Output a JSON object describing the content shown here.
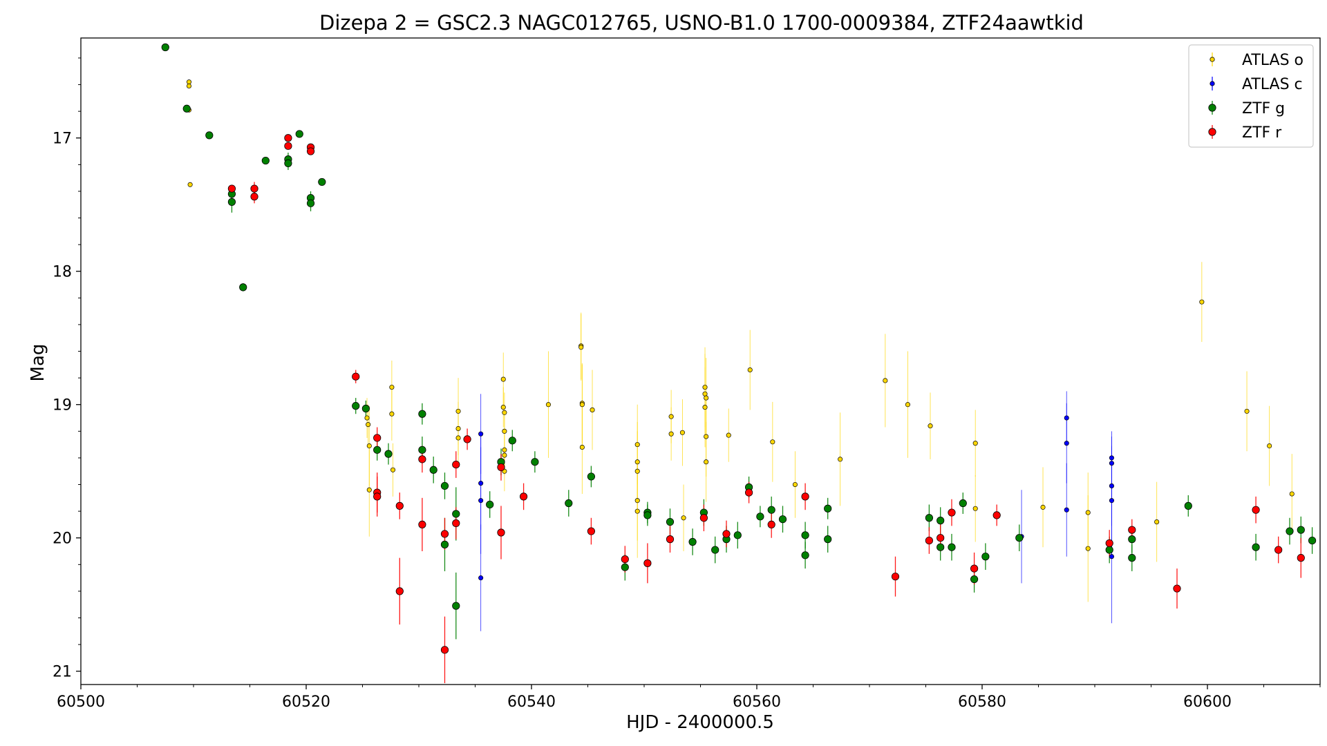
{
  "chart_data": {
    "type": "scatter",
    "title": "Dizepa 2 = GSC2.3 NAGC012765, USNO-B1.0 1700-0009384, ZTF24aawtkid",
    "xlabel": "HJD - 2400000.5",
    "ylabel": "Mag",
    "xlim": [
      60500,
      60610
    ],
    "ylim": [
      21.1,
      16.25
    ],
    "y_inverted": true,
    "grid": false,
    "legend_position": "top-right",
    "xticks": [
      60500,
      60520,
      60540,
      60560,
      60580,
      60600
    ],
    "xtick_labels": [
      "60500",
      "60520",
      "60540",
      "60560",
      "60580",
      "60600"
    ],
    "yticks": [
      17,
      18,
      19,
      20,
      21
    ],
    "ytick_labels": [
      "17",
      "18",
      "19",
      "20",
      "21"
    ],
    "series": [
      {
        "name": "ATLAS o",
        "color": "#ffd700",
        "marker": "small",
        "points": [
          [
            60509.6,
            16.58,
            0
          ],
          [
            60509.6,
            16.61,
            0
          ],
          [
            60509.6,
            16.79,
            0
          ],
          [
            60509.7,
            17.35,
            0
          ],
          [
            60525.4,
            19.1,
            0.15
          ],
          [
            60525.5,
            19.15,
            0.15
          ],
          [
            60525.6,
            19.31,
            0.3
          ],
          [
            60525.6,
            19.64,
            0.35
          ],
          [
            60527.6,
            18.87,
            0.2
          ],
          [
            60527.6,
            19.07,
            0.2
          ],
          [
            60527.7,
            19.49,
            0.2
          ],
          [
            60533.5,
            19.05,
            0.25
          ],
          [
            60533.5,
            19.18,
            0.2
          ],
          [
            60533.5,
            19.25,
            0.2
          ],
          [
            60537.5,
            18.81,
            0.2
          ],
          [
            60537.5,
            19.02,
            0.15
          ],
          [
            60537.6,
            19.06,
            0.15
          ],
          [
            60537.6,
            19.2,
            0.15
          ],
          [
            60537.6,
            19.34,
            0.15
          ],
          [
            60537.6,
            19.38,
            0.15
          ],
          [
            60537.6,
            19.5,
            0.15
          ],
          [
            60541.5,
            19.0,
            0.4
          ],
          [
            60544.4,
            18.56,
            0.25
          ],
          [
            60544.4,
            18.57,
            0.25
          ],
          [
            60544.5,
            18.99,
            0.3
          ],
          [
            60544.5,
            19.0,
            0.3
          ],
          [
            60544.5,
            19.32,
            0.35
          ],
          [
            60545.4,
            19.04,
            0.3
          ],
          [
            60549.4,
            19.3,
            0.3
          ],
          [
            60549.4,
            19.43,
            0.3
          ],
          [
            60549.4,
            19.5,
            0.3
          ],
          [
            60549.4,
            19.72,
            0.3
          ],
          [
            60549.4,
            19.8,
            0.35
          ],
          [
            60552.4,
            19.09,
            0.2
          ],
          [
            60552.4,
            19.22,
            0.2
          ],
          [
            60553.4,
            19.21,
            0.25
          ],
          [
            60553.5,
            19.85,
            0.25
          ],
          [
            60555.4,
            18.87,
            0.3
          ],
          [
            60555.4,
            18.92,
            0.3
          ],
          [
            60555.5,
            18.95,
            0.3
          ],
          [
            60555.4,
            19.02,
            0.3
          ],
          [
            60555.5,
            19.24,
            0.3
          ],
          [
            60555.5,
            19.43,
            0.3
          ],
          [
            60557.5,
            19.23,
            0.2
          ],
          [
            60559.4,
            18.74,
            0.3
          ],
          [
            60561.4,
            19.28,
            0.3
          ],
          [
            60563.4,
            19.6,
            0.25
          ],
          [
            60567.4,
            19.41,
            0.35
          ],
          [
            60571.4,
            18.82,
            0.35
          ],
          [
            60573.4,
            19.0,
            0.4
          ],
          [
            60575.4,
            19.16,
            0.25
          ],
          [
            60579.4,
            19.29,
            0.25
          ],
          [
            60579.4,
            19.78,
            0.25
          ],
          [
            60585.4,
            19.77,
            0.3
          ],
          [
            60589.4,
            19.81,
            0.3
          ],
          [
            60589.4,
            20.08,
            0.4
          ],
          [
            60595.5,
            19.88,
            0.3
          ],
          [
            60599.5,
            18.23,
            0.3
          ],
          [
            60603.5,
            19.05,
            0.3
          ],
          [
            60605.5,
            19.31,
            0.3
          ],
          [
            60607.5,
            19.67,
            0.3
          ]
        ]
      },
      {
        "name": "ATLAS c",
        "color": "#0000ff",
        "marker": "small",
        "points": [
          [
            60535.5,
            19.22,
            0.3
          ],
          [
            60535.5,
            19.59,
            0.35
          ],
          [
            60535.5,
            19.72,
            0.4
          ],
          [
            60535.5,
            20.3,
            0.4
          ],
          [
            60583.5,
            19.99,
            0.35
          ],
          [
            60587.5,
            19.1,
            0.2
          ],
          [
            60587.5,
            19.29,
            0.3
          ],
          [
            60587.5,
            19.79,
            0.35
          ],
          [
            60591.5,
            19.4,
            0.2
          ],
          [
            60591.5,
            19.44,
            0.2
          ],
          [
            60591.5,
            19.61,
            0.3
          ],
          [
            60591.5,
            19.72,
            0.4
          ],
          [
            60591.5,
            20.14,
            0.5
          ]
        ]
      },
      {
        "name": "ZTF g",
        "color": "#008000",
        "marker": "large",
        "points": [
          [
            60507.5,
            16.32,
            0
          ],
          [
            60509.4,
            16.78,
            0
          ],
          [
            60511.4,
            16.98,
            0
          ],
          [
            60513.4,
            17.42,
            0.05
          ],
          [
            60513.4,
            17.48,
            0.08
          ],
          [
            60514.4,
            18.12,
            0.03
          ],
          [
            60516.4,
            17.17,
            0
          ],
          [
            60518.4,
            17.16,
            0.05
          ],
          [
            60518.4,
            17.19,
            0.05
          ],
          [
            60519.4,
            16.97,
            0
          ],
          [
            60520.4,
            17.45,
            0.05
          ],
          [
            60520.4,
            17.49,
            0.06
          ],
          [
            60521.4,
            17.33,
            0
          ],
          [
            60524.4,
            19.01,
            0.06
          ],
          [
            60525.3,
            19.03,
            0.06
          ],
          [
            60526.3,
            19.34,
            0.08
          ],
          [
            60527.3,
            19.37,
            0.08
          ],
          [
            60530.3,
            19.07,
            0.08
          ],
          [
            60530.3,
            19.34,
            0.1
          ],
          [
            60531.3,
            19.49,
            0.1
          ],
          [
            60532.3,
            19.61,
            0.1
          ],
          [
            60532.3,
            20.05,
            0.2
          ],
          [
            60533.3,
            19.82,
            0.2
          ],
          [
            60533.3,
            20.51,
            0.25
          ],
          [
            60536.3,
            19.75,
            0.1
          ],
          [
            60537.3,
            19.43,
            0.1
          ],
          [
            60538.3,
            19.27,
            0.08
          ],
          [
            60540.3,
            19.43,
            0.08
          ],
          [
            60543.3,
            19.74,
            0.1
          ],
          [
            60545.3,
            19.54,
            0.08
          ],
          [
            60548.3,
            20.22,
            0.1
          ],
          [
            60550.3,
            19.81,
            0.08
          ],
          [
            60550.3,
            19.83,
            0.08
          ],
          [
            60552.3,
            19.88,
            0.1
          ],
          [
            60554.3,
            20.03,
            0.1
          ],
          [
            60555.3,
            19.81,
            0.1
          ],
          [
            60556.3,
            20.09,
            0.1
          ],
          [
            60557.3,
            20.01,
            0.1
          ],
          [
            60558.3,
            19.98,
            0.1
          ],
          [
            60559.3,
            19.62,
            0.08
          ],
          [
            60560.3,
            19.84,
            0.08
          ],
          [
            60561.3,
            19.79,
            0.1
          ],
          [
            60562.3,
            19.86,
            0.1
          ],
          [
            60564.3,
            19.98,
            0.1
          ],
          [
            60564.3,
            20.13,
            0.1
          ],
          [
            60566.3,
            20.01,
            0.1
          ],
          [
            60566.3,
            19.78,
            0.08
          ],
          [
            60575.3,
            19.85,
            0.1
          ],
          [
            60576.3,
            19.87,
            0.1
          ],
          [
            60576.3,
            20.07,
            0.1
          ],
          [
            60577.3,
            20.07,
            0.1
          ],
          [
            60578.3,
            19.74,
            0.08
          ],
          [
            60579.3,
            20.31,
            0.1
          ],
          [
            60580.3,
            20.14,
            0.1
          ],
          [
            60583.3,
            20.0,
            0.1
          ],
          [
            60591.3,
            20.09,
            0.1
          ],
          [
            60593.3,
            20.01,
            0.1
          ],
          [
            60593.3,
            20.15,
            0.1
          ],
          [
            60598.3,
            19.76,
            0.08
          ],
          [
            60604.3,
            20.07,
            0.1
          ],
          [
            60607.3,
            19.95,
            0.1
          ],
          [
            60608.3,
            19.94,
            0.1
          ],
          [
            60609.3,
            20.02,
            0.1
          ]
        ]
      },
      {
        "name": "ZTF r",
        "color": "#ff0000",
        "marker": "large",
        "points": [
          [
            60513.4,
            17.38,
            0
          ],
          [
            60515.4,
            17.38,
            0.05
          ],
          [
            60515.4,
            17.44,
            0.05
          ],
          [
            60518.4,
            17.0,
            0
          ],
          [
            60518.4,
            17.06,
            0
          ],
          [
            60520.4,
            17.07,
            0
          ],
          [
            60520.4,
            17.1,
            0
          ],
          [
            60524.4,
            18.79,
            0.05
          ],
          [
            60526.3,
            19.25,
            0.08
          ],
          [
            60526.3,
            19.66,
            0.15
          ],
          [
            60526.3,
            19.69,
            0.15
          ],
          [
            60528.3,
            19.76,
            0.1
          ],
          [
            60528.3,
            20.4,
            0.25
          ],
          [
            60530.3,
            19.41,
            0.1
          ],
          [
            60530.3,
            19.9,
            0.2
          ],
          [
            60532.3,
            19.97,
            0.12
          ],
          [
            60532.3,
            20.84,
            0.25
          ],
          [
            60533.3,
            19.45,
            0.1
          ],
          [
            60533.3,
            19.89,
            0.12
          ],
          [
            60534.3,
            19.26,
            0.08
          ],
          [
            60537.3,
            19.47,
            0.1
          ],
          [
            60537.3,
            19.96,
            0.2
          ],
          [
            60539.3,
            19.69,
            0.1
          ],
          [
            60545.3,
            19.95,
            0.1
          ],
          [
            60548.3,
            20.16,
            0.1
          ],
          [
            60550.3,
            20.19,
            0.15
          ],
          [
            60552.3,
            20.01,
            0.1
          ],
          [
            60555.3,
            19.85,
            0.1
          ],
          [
            60557.3,
            19.97,
            0.1
          ],
          [
            60559.3,
            19.66,
            0.08
          ],
          [
            60561.3,
            19.9,
            0.1
          ],
          [
            60564.3,
            19.69,
            0.1
          ],
          [
            60572.3,
            20.29,
            0.15
          ],
          [
            60575.3,
            20.02,
            0.1
          ],
          [
            60576.3,
            20.0,
            0.1
          ],
          [
            60577.3,
            19.81,
            0.1
          ],
          [
            60579.3,
            20.23,
            0.12
          ],
          [
            60581.3,
            19.83,
            0.08
          ],
          [
            60591.3,
            20.04,
            0.1
          ],
          [
            60593.3,
            19.94,
            0.08
          ],
          [
            60597.3,
            20.38,
            0.15
          ],
          [
            60604.3,
            19.79,
            0.1
          ],
          [
            60606.3,
            20.09,
            0.1
          ],
          [
            60608.3,
            20.15,
            0.15
          ]
        ]
      }
    ]
  }
}
